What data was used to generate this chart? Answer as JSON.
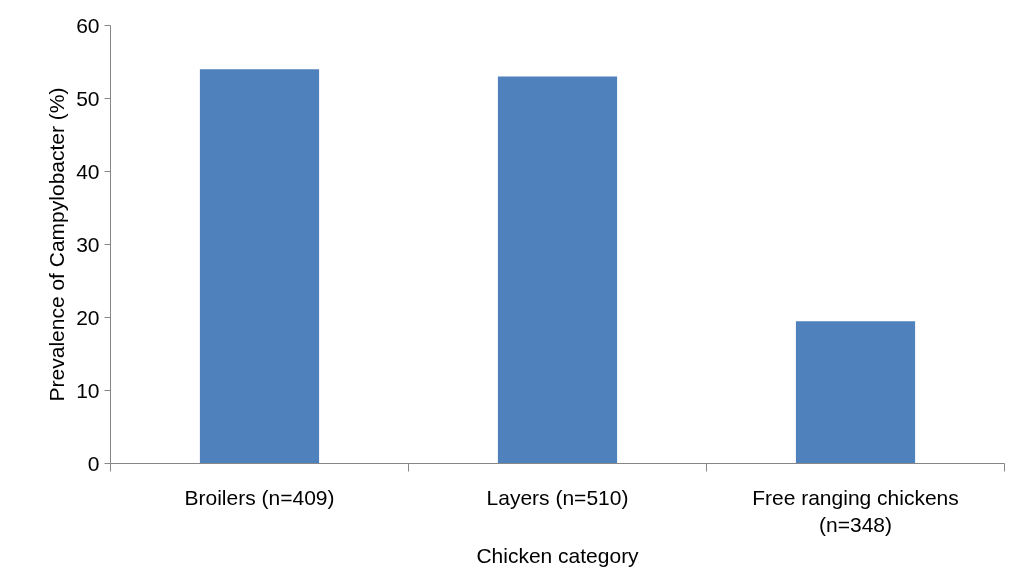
{
  "chart_data": {
    "type": "bar",
    "xlabel": "Chicken category",
    "ylabel": "Prevalence of Campylobacter (%)",
    "categories": [
      "Broilers (n=409)",
      "Layers (n=510)",
      "Free ranging chickens (n=348)"
    ],
    "values": [
      54,
      53,
      19.5
    ],
    "color": "#4f81bd",
    "ylim": [
      0,
      60
    ],
    "yticks": [
      0,
      10,
      20,
      30,
      40,
      50,
      60
    ],
    "grid": false
  }
}
